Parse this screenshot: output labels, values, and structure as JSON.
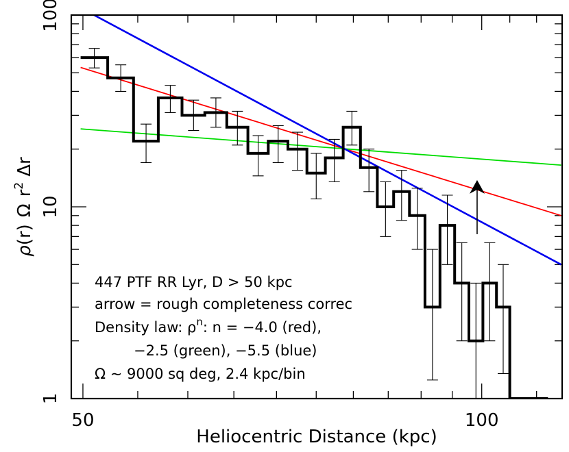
{
  "chart_data": {
    "type": "line",
    "xlabel": "Heliocentric Distance (kpc)",
    "ylabel_parts": {
      "rho": "ρ",
      "r": "(r)",
      "omega": "Ω",
      "rsym": "r",
      "sup2": "2",
      "delta": "Δr"
    },
    "x_scale": "log",
    "y_scale": "log",
    "xlim": [
      49,
      115
    ],
    "ylim": [
      1,
      100
    ],
    "x_ticks": [
      {
        "value": 50,
        "label": "50"
      },
      {
        "value": 100,
        "label": "100"
      }
    ],
    "y_ticks": [
      {
        "value": 1,
        "label": "1"
      },
      {
        "value": 10,
        "label": "10"
      },
      {
        "value": 100,
        "label": "100"
      }
    ],
    "histogram": {
      "bin_edges": [
        49.8,
        52.2,
        54.6,
        57.0,
        59.4,
        61.8,
        64.2,
        66.6,
        69.0,
        71.4,
        73.8,
        76.2,
        78.6,
        81.0,
        83.4,
        85.8,
        88.2,
        90.6,
        93.0,
        95.4,
        97.8,
        100.2,
        102.6,
        105.0,
        107.4,
        109.8,
        112.2
      ],
      "values": [
        60,
        47,
        22,
        37,
        30,
        31,
        26,
        19,
        22,
        20,
        15,
        18,
        26,
        16,
        10,
        12,
        9,
        3,
        8,
        4,
        2,
        4,
        3,
        1,
        1,
        1
      ],
      "err_low": [
        53,
        40,
        17,
        31,
        25,
        26,
        21,
        14.5,
        17,
        15.5,
        11,
        13.5,
        21,
        12,
        7,
        8.5,
        6,
        1.25,
        5,
        2,
        1,
        2,
        1.35,
        null,
        null,
        null
      ],
      "err_high": [
        67,
        55,
        27,
        43,
        36,
        37,
        31.5,
        23.5,
        26.5,
        24.5,
        19,
        22.5,
        31.5,
        20,
        13.5,
        15.5,
        12.5,
        6,
        11.5,
        6.5,
        4,
        6.5,
        5,
        null,
        null,
        null
      ]
    },
    "arrow": {
      "x": 99.2,
      "y_from": 7.2,
      "y_to": 13.8
    },
    "series": [
      {
        "color": "#ff0000",
        "points": [
          [
            49.8,
            53.3
          ],
          [
            114.8,
            9.0
          ]
        ]
      },
      {
        "color": "#00dd00",
        "points": [
          [
            49.8,
            25.5
          ],
          [
            114.8,
            16.5
          ]
        ]
      },
      {
        "color": "#0000ee",
        "points": [
          [
            49.8,
            109
          ],
          [
            114.8,
            5.0
          ]
        ]
      }
    ],
    "annotations": {
      "line1": "447 PTF RR Lyr, D > 50 kpc",
      "line2": "arrow = rough completeness correc",
      "line3_a": "Density law: ρ",
      "line3_sup": "n",
      "line3_b": ": n = −4.0 (red),",
      "line4": "−2.5 (green), −5.5 (blue)",
      "line5": "Ω ~ 9000 sq deg, 2.4 kpc/bin"
    }
  }
}
